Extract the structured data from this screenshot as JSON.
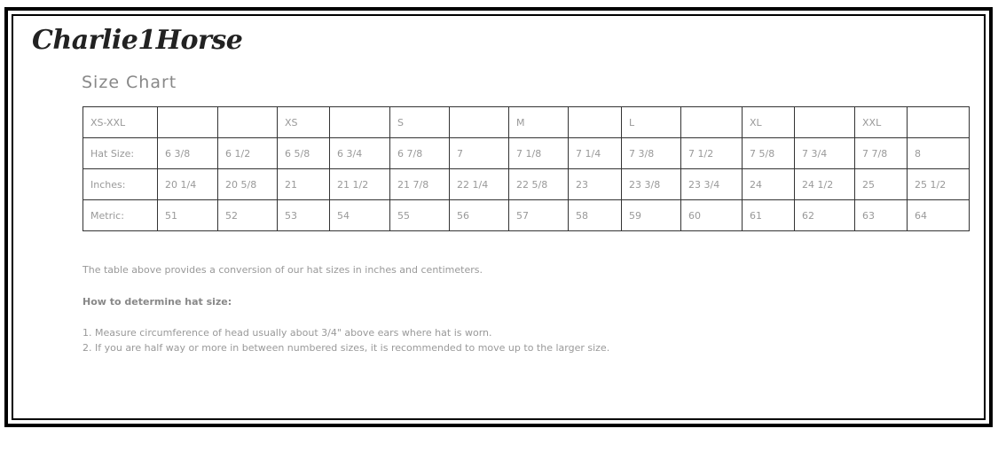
{
  "header": {
    "brand": "Charlie1Horse",
    "title": "Size Chart"
  },
  "table": {
    "rows": [
      [
        "XS-XXL",
        null,
        null,
        "XS",
        null,
        "S",
        null,
        "M",
        null,
        "L",
        null,
        "XL",
        null,
        "XXL",
        null
      ],
      [
        "Hat Size:",
        "6 3/8",
        "6 1/2",
        "6 5/8",
        "6 3/4",
        "6 7/8",
        "7",
        "7 1/8",
        "7 1/4",
        "7 3/8",
        "7 1/2",
        "7 5/8",
        "7 3/4",
        "7 7/8",
        "8"
      ],
      [
        "Inches:",
        "20 1/4",
        "20 5/8",
        "21",
        "21 1/2",
        "21 7/8",
        "22 1/4",
        "22 5/8",
        "23",
        "23 3/8",
        "23 3/4",
        "24",
        "24 1/2",
        "25",
        "25 1/2"
      ],
      [
        "Metric:",
        "51",
        "52",
        "53",
        "54",
        "55",
        "56",
        "57",
        "58",
        "59",
        "60",
        "61",
        "62",
        "63",
        "64"
      ]
    ]
  },
  "notes": {
    "intro": "The table above provides a conversion of our hat sizes in inches and centimeters.",
    "heading": "How to determine hat size:",
    "steps": [
      "1. Measure circumference of head usually about 3/4\" above ears where hat is worn.",
      "2. If you are half way or more in between numbered sizes, it is recommended to move up to the larger size."
    ]
  }
}
